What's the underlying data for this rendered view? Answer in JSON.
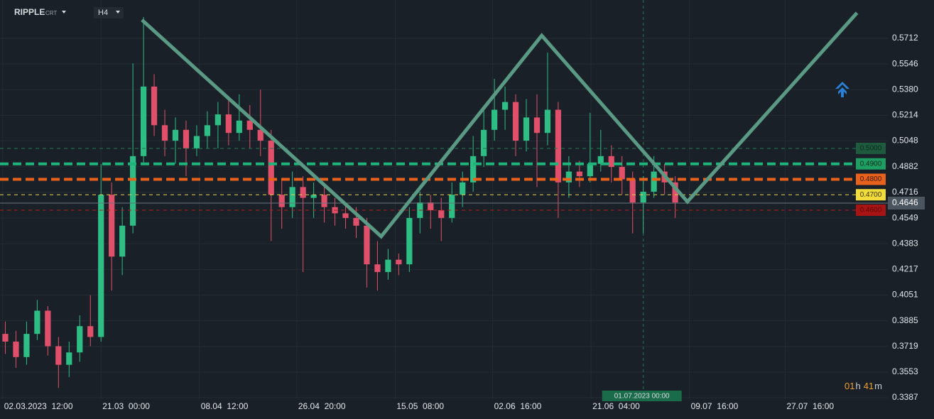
{
  "chart_data": {
    "type": "candlestick",
    "symbol": "RIPPLE",
    "symbol_type": "CRT",
    "timeframe": "H4",
    "xlim": [
      0,
      167
    ],
    "ylim": [
      0.3332,
      0.596
    ],
    "xticks": [
      {
        "value": 0.5,
        "label": "02.03.2023  12:00"
      },
      {
        "value": 19,
        "label": "21.03  00:00"
      },
      {
        "value": 37.5,
        "label": "08.04  12:00"
      },
      {
        "value": 55.83,
        "label": "26.04  20:00"
      },
      {
        "value": 74.33,
        "label": "15.05  08:00"
      },
      {
        "value": 92.67,
        "label": "02.06  16:00"
      },
      {
        "value": 111.17,
        "label": "21.06  04:00"
      },
      {
        "value": 129.67,
        "label": "09.07  16:00"
      },
      {
        "value": 147.67,
        "label": "27.07  16:00"
      }
    ],
    "yticks": [
      0.5712,
      0.5546,
      {
        "value": 0.538,
        "label": "0.5380"
      },
      0.5214,
      0.5048,
      0.4882,
      0.4716,
      0.4549,
      0.4383,
      0.4217,
      0.4051,
      0.3885,
      0.3719,
      0.3553,
      0.3387
    ],
    "grid": true,
    "up_color": "#2ebd85",
    "down_color": "#e0506a",
    "candles": {
      "x": [
        1,
        3,
        5,
        7,
        9,
        11,
        13,
        15,
        17,
        19,
        21,
        23,
        25,
        27,
        29,
        31,
        33,
        35,
        37,
        39,
        41,
        43,
        45,
        47,
        49,
        51,
        53,
        55,
        57,
        59,
        61,
        63,
        65,
        67,
        69,
        71,
        73,
        75,
        77,
        79,
        81,
        83,
        85,
        87,
        89,
        91,
        93,
        95,
        97,
        99,
        101,
        103,
        105,
        107,
        109,
        111,
        113,
        115,
        117,
        119,
        121,
        123,
        125,
        127
      ],
      "open": [
        0.38,
        0.375,
        0.365,
        0.38,
        0.395,
        0.372,
        0.36,
        0.368,
        0.385,
        0.378,
        0.47,
        0.43,
        0.45,
        0.495,
        0.54,
        0.515,
        0.505,
        0.512,
        0.5,
        0.508,
        0.515,
        0.522,
        0.51,
        0.518,
        0.512,
        0.505,
        0.47,
        0.462,
        0.475,
        0.468,
        0.47,
        0.462,
        0.458,
        0.455,
        0.45,
        0.425,
        0.42,
        0.428,
        0.425,
        0.455,
        0.465,
        0.46,
        0.455,
        0.47,
        0.478,
        0.495,
        0.512,
        0.525,
        0.53,
        0.505,
        0.52,
        0.51,
        0.525,
        0.478,
        0.485,
        0.482,
        0.49,
        0.495,
        0.488,
        0.48,
        0.465,
        0.472,
        0.485,
        0.478
      ],
      "high": [
        0.388,
        0.382,
        0.388,
        0.402,
        0.398,
        0.378,
        0.375,
        0.392,
        0.405,
        0.49,
        0.478,
        0.462,
        0.555,
        0.585,
        0.548,
        0.525,
        0.52,
        0.518,
        0.515,
        0.524,
        0.53,
        0.532,
        0.535,
        0.528,
        0.538,
        0.512,
        0.48,
        0.485,
        0.482,
        0.478,
        0.475,
        0.468,
        0.465,
        0.462,
        0.455,
        0.44,
        0.435,
        0.432,
        0.462,
        0.472,
        0.47,
        0.468,
        0.478,
        0.485,
        0.508,
        0.525,
        0.545,
        0.54,
        0.535,
        0.532,
        0.535,
        0.562,
        0.53,
        0.495,
        0.492,
        0.523,
        0.512,
        0.502,
        0.495,
        0.485,
        0.482,
        0.495,
        0.49,
        0.482
      ],
      "low": [
        0.367,
        0.358,
        0.36,
        0.376,
        0.366,
        0.345,
        0.352,
        0.362,
        0.372,
        0.375,
        0.408,
        0.418,
        0.445,
        0.49,
        0.508,
        0.495,
        0.49,
        0.482,
        0.495,
        0.5,
        0.5,
        0.502,
        0.505,
        0.5,
        0.495,
        0.44,
        0.448,
        0.455,
        0.42,
        0.455,
        0.452,
        0.45,
        0.448,
        0.442,
        0.41,
        0.408,
        0.415,
        0.418,
        0.42,
        0.445,
        0.448,
        0.44,
        0.452,
        0.462,
        0.472,
        0.488,
        0.505,
        0.512,
        0.495,
        0.498,
        0.475,
        0.502,
        0.455,
        0.468,
        0.475,
        0.478,
        0.485,
        0.478,
        0.47,
        0.445,
        0.445,
        0.468,
        0.47,
        0.455
      ],
      "close": [
        0.375,
        0.365,
        0.38,
        0.395,
        0.372,
        0.36,
        0.368,
        0.385,
        0.378,
        0.47,
        0.43,
        0.45,
        0.495,
        0.54,
        0.515,
        0.505,
        0.512,
        0.5,
        0.508,
        0.515,
        0.522,
        0.51,
        0.518,
        0.512,
        0.505,
        0.47,
        0.462,
        0.475,
        0.468,
        0.47,
        0.462,
        0.458,
        0.455,
        0.45,
        0.425,
        0.42,
        0.428,
        0.425,
        0.455,
        0.465,
        0.46,
        0.455,
        0.47,
        0.478,
        0.495,
        0.512,
        0.525,
        0.53,
        0.505,
        0.52,
        0.51,
        0.525,
        0.478,
        0.485,
        0.482,
        0.49,
        0.495,
        0.488,
        0.48,
        0.465,
        0.472,
        0.485,
        0.478,
        0.465
      ]
    },
    "levels": [
      {
        "value": 0.5,
        "label": "0.5000",
        "color": "#1f7a55",
        "box": "#1d5a3e",
        "label_color": "#0f2a1e",
        "thick": false
      },
      {
        "value": 0.49,
        "label": "0.4900",
        "color": "#1fb27a",
        "box": "#1e9e62",
        "label_color": "#0c2a1c",
        "thick": true
      },
      {
        "value": 0.48,
        "label": "0.4800",
        "color": "#e8621c",
        "box": "#e8621c",
        "label_color": "#3a1806",
        "thick": true
      },
      {
        "value": 0.47,
        "label": "0.4700",
        "color": "#e8d44d",
        "box": "#f2dc3c",
        "label_color": "#3a3206",
        "thick": false
      },
      {
        "value": 0.46,
        "label": "0.4600",
        "color": "#b51c1c",
        "box": "#a81414",
        "label_color": "#5a0a0a",
        "thick": false
      }
    ],
    "current_price": {
      "value": 0.4646,
      "label": "0.4646"
    },
    "zigzag": {
      "x": [
        26.7,
        71.7,
        101.9,
        129.3,
        161.2
      ],
      "y": [
        0.5831,
        0.443,
        0.573,
        0.4655,
        0.5877
      ],
      "color": "#5a9a84"
    },
    "crosshair": {
      "x": 121,
      "label": "01.07.2023 00:00"
    },
    "countdown": {
      "hours": "01",
      "h": "h",
      "minutes": "41",
      "m": "m"
    }
  }
}
